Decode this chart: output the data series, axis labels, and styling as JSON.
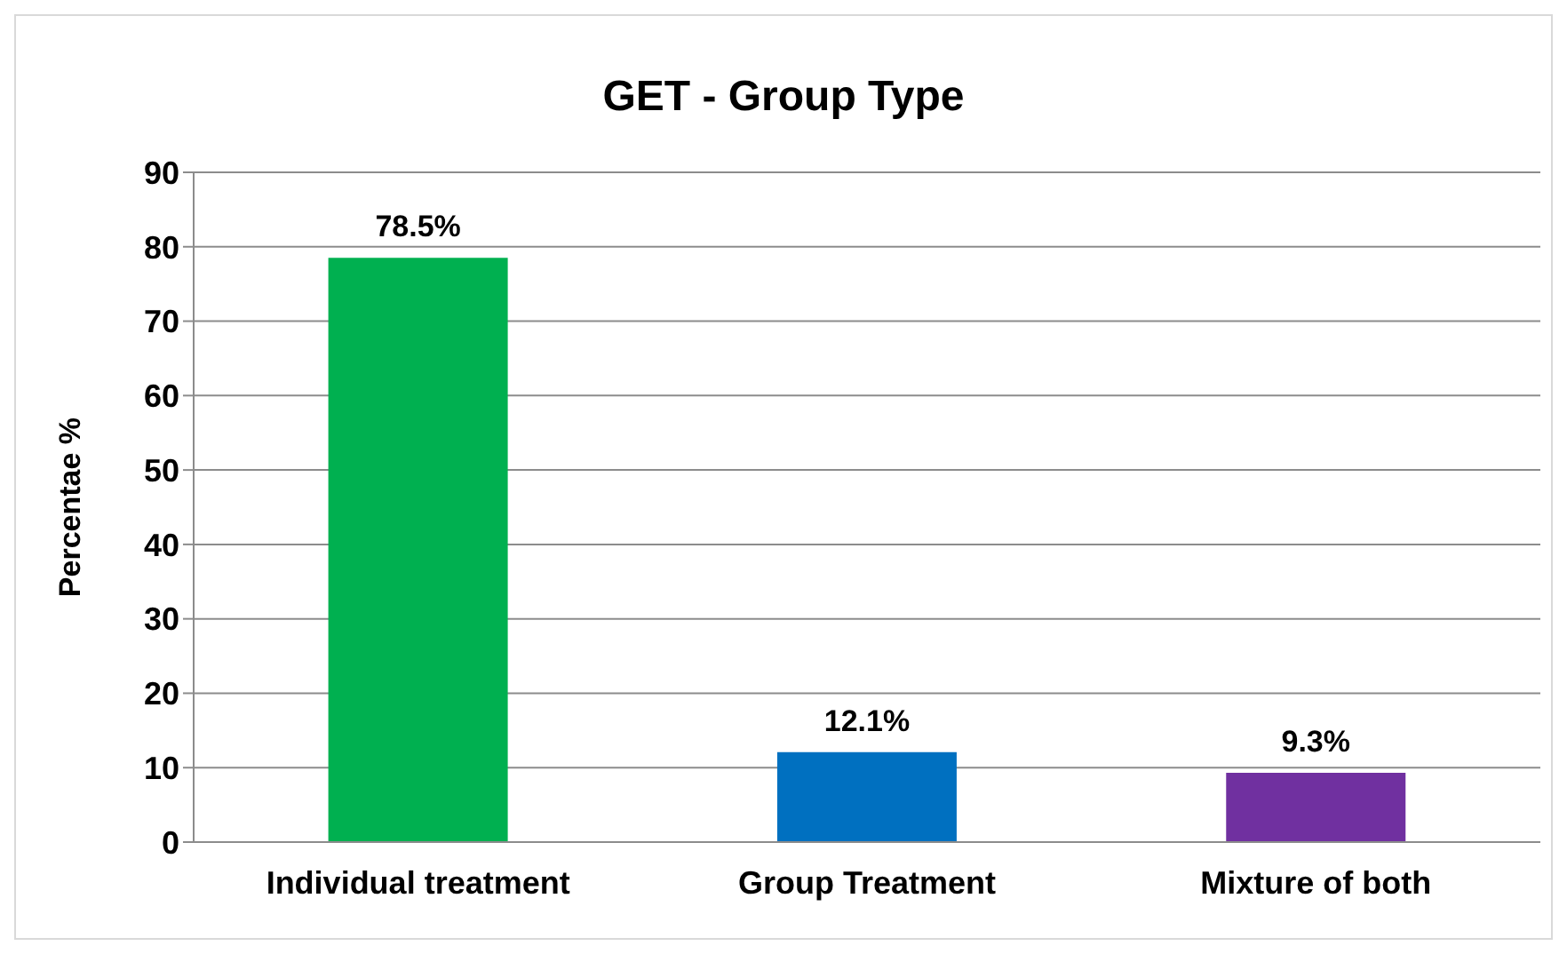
{
  "chart_data": {
    "type": "bar",
    "title": "GET - Group Type",
    "ylabel": "Percentae %",
    "categories": [
      "Individual treatment",
      "Group Treatment",
      "Mixture of both"
    ],
    "values": [
      78.5,
      12.1,
      9.3
    ],
    "colors": [
      "#00b050",
      "#0070c0",
      "#7030a0"
    ],
    "value_labels": [
      "78.5%",
      "12.1%",
      "9.3%"
    ],
    "ylim": [
      0,
      90
    ],
    "yticks": [
      0,
      10,
      20,
      30,
      40,
      50,
      60,
      70,
      80,
      90
    ],
    "grid": "y",
    "legend": false
  }
}
